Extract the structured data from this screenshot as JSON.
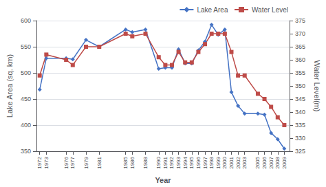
{
  "chart_data": {
    "type": "line",
    "x": [
      1972,
      1973,
      1976,
      1977,
      1979,
      1981,
      1985,
      1986,
      1988,
      1990,
      1991,
      1992,
      1993,
      1994,
      1995,
      1996,
      1997,
      1998,
      1999,
      2000,
      2001,
      2002,
      2003,
      2005,
      2006,
      2007,
      2008,
      2009
    ],
    "xlabel": "Year",
    "ylabel": "Lake Area (sq. km)",
    "y2label": "Water Level(m)",
    "xlim": [
      1971.5,
      2009.8
    ],
    "xticks": [
      1972,
      1973,
      1976,
      1977,
      1979,
      1981,
      1985,
      1986,
      1988,
      1990,
      1991,
      1992,
      1993,
      1994,
      1995,
      1996,
      1997,
      1998,
      1999,
      2000,
      2001,
      2002,
      2003,
      2005,
      2006,
      2007,
      2008,
      2009
    ],
    "ylim": [
      350,
      600
    ],
    "yticks": [
      350,
      400,
      450,
      500,
      550,
      600
    ],
    "y2lim": [
      325,
      375
    ],
    "y2ticks": [
      325,
      330,
      335,
      340,
      345,
      350,
      355,
      360,
      365,
      370,
      375
    ],
    "grid": true,
    "legend": "upper right",
    "series": [
      {
        "name": "Lake Area",
        "color": "#4472C4",
        "marker": "diamond",
        "values": [
          468,
          528,
          528,
          526,
          563,
          550,
          583,
          578,
          583,
          508,
          510,
          510,
          545,
          518,
          518,
          543,
          560,
          592,
          573,
          583,
          463,
          437,
          422,
          422,
          420,
          385,
          373,
          355
        ]
      },
      {
        "name": "Water Level",
        "color": "#BE4B48",
        "marker": "square",
        "axis": "y2",
        "values": [
          354,
          362,
          360,
          358,
          365,
          365,
          370,
          369,
          370,
          361,
          358,
          358,
          363,
          359,
          359,
          363,
          366,
          370,
          370,
          370,
          363,
          354,
          354,
          347,
          345,
          342,
          338,
          335
        ]
      }
    ]
  }
}
